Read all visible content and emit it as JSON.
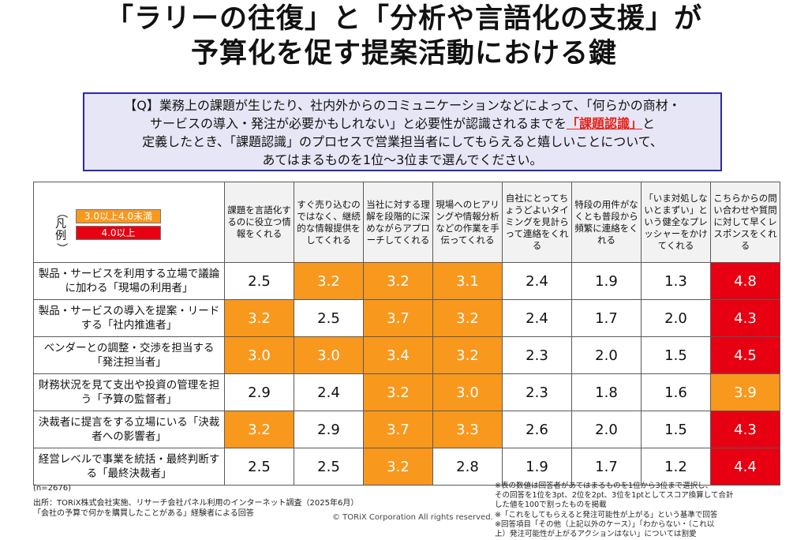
{
  "title_line1": "「ラリーの往復」と「分析や言語化の支援」が",
  "title_line2": "予算化を促す提案活動における鍵",
  "question": {
    "line1": "【Q】業務上の課題が生じたり、社内外からのコミュニケーションなどによって、「何らかの商材・",
    "line2_before": "サービスの導入・発注が必要かもしれない」と必要性が認識されるまでを",
    "line2_highlight": "「課題認識」",
    "line2_after": "と",
    "line3": "定義したとき、「課題認識」のプロセスで営業担当者にしてもらえると嬉しいことについて、",
    "line4": "あてはまるものを1位〜3位まで選んでください。"
  },
  "legend": {
    "mark_top": "凡",
    "mark_bottom": "例",
    "paren_open": "（",
    "paren_close": "）",
    "items": [
      {
        "label": "3.0以上4.0未満",
        "color": "#f8981d",
        "text_color": "#ffffff"
      },
      {
        "label": "4.0以上",
        "color": "#e60012",
        "text_color": "#ffffff"
      }
    ]
  },
  "chart_data": {
    "type": "table",
    "columns": [
      "課題を言語化するのに役立つ情報をくれる",
      "すぐ売り込むのではなく、継続的な情報提供をしてくれる",
      "当社に対する理解を段階的に深めながらアプローチしてくれる",
      "現場へのヒアリングや情報分析などの作業を手伝ってくれる",
      "自社にとってちょうどよいタイミングを見計らって連絡をくれる",
      "特段の用件がなくとも普段から頻繁に連絡をくれる",
      "「いま対処しないとまずい」という健全なプレッシャーをかけてくれる",
      "こちらからの問い合わせや質問に対して早くレスポンスをくれる"
    ],
    "rows": [
      {
        "label": "製品・サービスを利用する立場で議論に加わる「現場の利用者」",
        "values": [
          2.5,
          3.2,
          3.2,
          3.1,
          2.4,
          1.9,
          1.3,
          4.8
        ]
      },
      {
        "label": "製品・サービスの導入を提案・リードする「社内推進者」",
        "values": [
          3.2,
          2.5,
          3.7,
          3.2,
          2.4,
          1.7,
          2.0,
          4.3
        ]
      },
      {
        "label": "ベンダーとの調整・交渉を担当する「発注担当者」",
        "values": [
          3.0,
          3.0,
          3.4,
          3.2,
          2.3,
          2.0,
          1.5,
          4.5
        ]
      },
      {
        "label": "財務状況を見て支出や投資の管理を担う「予算の監督者」",
        "values": [
          2.9,
          2.4,
          3.2,
          3.0,
          2.3,
          1.8,
          1.6,
          3.9
        ]
      },
      {
        "label": "決裁者に提言をする立場にいる「決裁者への影響者」",
        "values": [
          3.2,
          2.9,
          3.7,
          3.3,
          2.6,
          2.0,
          1.5,
          4.3
        ]
      },
      {
        "label": "経営レベルで事業を統括・最終判断する「最終決裁者」",
        "values": [
          2.5,
          2.5,
          3.2,
          2.8,
          1.9,
          1.7,
          1.2,
          4.4
        ]
      }
    ],
    "thresholds": {
      "mid_min": 3.0,
      "high_min": 4.0
    },
    "colors": {
      "mid": "#f8981d",
      "high": "#e60012",
      "normal": "#ffffff",
      "header_bg": "#f2f2f2"
    }
  },
  "footer": {
    "n": "(n=2676)",
    "source_line1": "出所：TORiX株式会社実施、リサーチ会社パネル利用のインターネット調査（2025年6月）",
    "source_line2": "「会社の予算で何かを購買したことがある」経験者による回答",
    "copyright": "© TORiX Corporation All rights reserved.",
    "notes": [
      "※表の数値は回答者があてはまるものを1位から3位まで選択し、",
      "その回答を1位を3pt、2位を2pt、3位を1ptとしてスコア換算して合計",
      "した値を100で割ったものを掲載",
      "※「これをしてもらえると発注可能性が上がる」という基準で回答",
      "※回答項目「その他（上記以外のケース）」「わからない・（これ以",
      "上）発注可能性が上がるアクションはない」については割愛"
    ]
  }
}
